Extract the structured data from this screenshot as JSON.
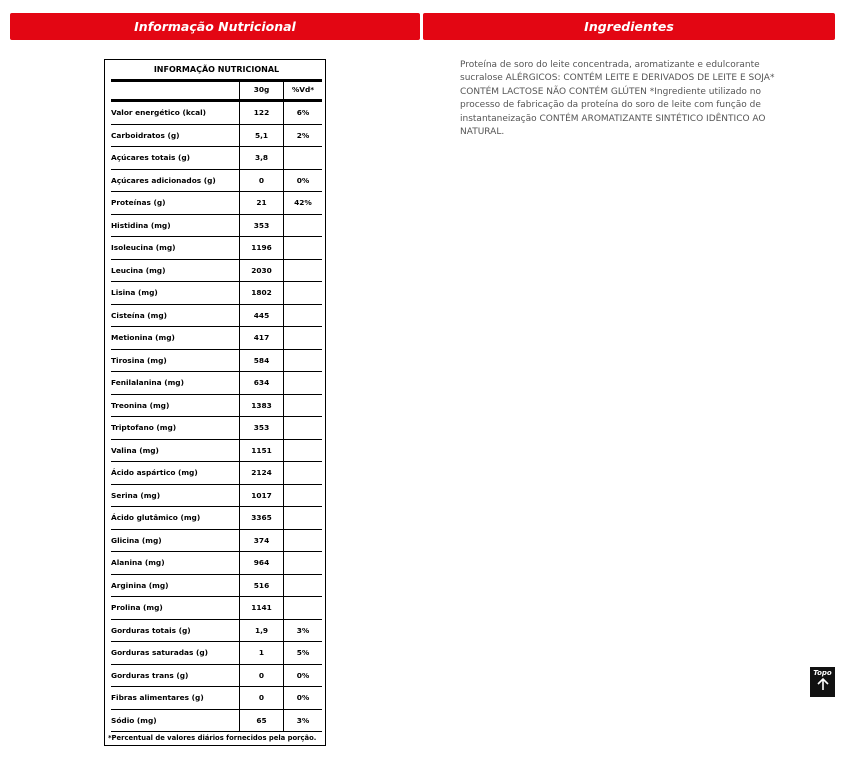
{
  "tabs": {
    "nutrition": "Informação Nutricional",
    "ingredients": "Ingredientes"
  },
  "table": {
    "title": "INFORMAÇÃO NUTRICIONAL",
    "header": [
      "30g",
      "%Vd*"
    ],
    "rows": [
      [
        "Valor energético (kcal)",
        "122",
        "6%"
      ],
      [
        "Carboidratos (g)",
        "5,1",
        "2%"
      ],
      [
        "Açúcares totais (g)",
        "3,8",
        null
      ],
      [
        "Açúcares adicionados (g)",
        "0",
        "0%"
      ],
      [
        "Proteínas (g)",
        "21",
        "42%"
      ],
      [
        "Histidina (mg)",
        "353",
        null
      ],
      [
        "Isoleucina (mg)",
        "1196",
        null
      ],
      [
        "Leucina (mg)",
        "2030",
        null
      ],
      [
        "Lisina (mg)",
        "1802",
        null
      ],
      [
        "Cisteína (mg)",
        "445",
        null
      ],
      [
        "Metionina (mg)",
        "417",
        null
      ],
      [
        "Tirosina (mg)",
        "584",
        null
      ],
      [
        "Fenilalanina (mg)",
        "634",
        null
      ],
      [
        "Treonina (mg)",
        "1383",
        null
      ],
      [
        "Triptofano (mg)",
        "353",
        null
      ],
      [
        "Valina (mg)",
        "1151",
        null
      ],
      [
        "Ácido aspártico (mg)",
        "2124",
        null
      ],
      [
        "Serina (mg)",
        "1017",
        null
      ],
      [
        "Ácido glutâmico (mg)",
        "3365",
        null
      ],
      [
        "Glicina (mg)",
        "374",
        null
      ],
      [
        "Alanina (mg)",
        "964",
        null
      ],
      [
        "Arginina (mg)",
        "516",
        null
      ],
      [
        "Prolina (mg)",
        "1141",
        null
      ],
      [
        "Gorduras totais (g)",
        "1,9",
        "3%"
      ],
      [
        "Gorduras saturadas (g)",
        "1",
        "5%"
      ],
      [
        "Gorduras trans (g)",
        "0",
        "0%"
      ],
      [
        "Fibras alimentares (g)",
        "0",
        "0%"
      ],
      [
        "Sódio (mg)",
        "65",
        "3%"
      ]
    ],
    "footnote": "*Percentual de valores diários fornecidos pela porção."
  },
  "ingredients": "Proteína de soro do leite concentrada, aromatizante e edulcorante sucralose ALÉRGICOS: CONTÉM LEITE E DERIVADOS DE LEITE E SOJA* CONTÉM LACTOSE NÃO CONTÉM GLÚTEN *Ingrediente utilizado no processo de fabricação da proteína do soro de leite com função de instantaneização CONTÉM AROMATIZANTE SINTÉTICO IDÊNTICO AO NATURAL.",
  "back_to_top": "Topo"
}
